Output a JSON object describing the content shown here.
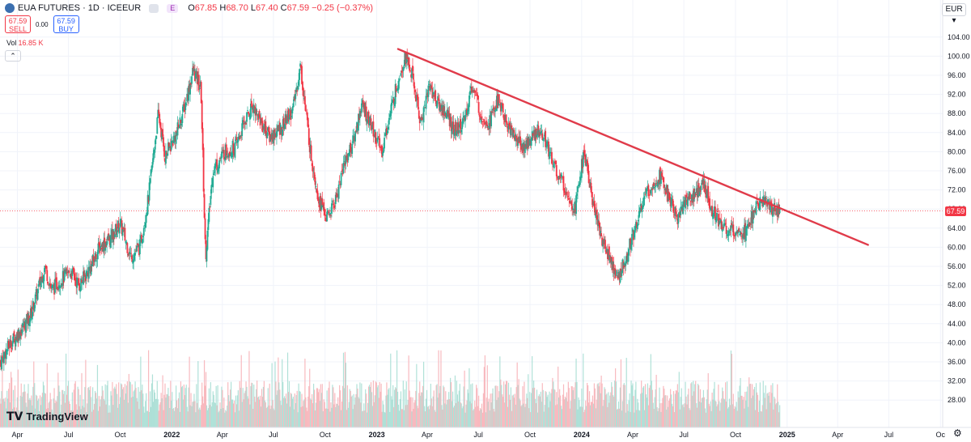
{
  "header": {
    "symbol": "EUA FUTURES · 1D · ICEEUR",
    "badge": "E",
    "ohlc": [
      {
        "k": "O",
        "v": "67.85"
      },
      {
        "k": "H",
        "v": "68.70"
      },
      {
        "k": "L",
        "v": "67.40"
      },
      {
        "k": "C",
        "v": "67.59"
      },
      {
        "k": "",
        "v": "−0.25 (−0.37%)"
      }
    ]
  },
  "trade": {
    "sell_price": "67.59",
    "sell_label": "SELL",
    "spread": "0.00",
    "buy_price": "67.59",
    "buy_label": "BUY"
  },
  "volume": {
    "label": "Vol",
    "value": "16.85 K"
  },
  "currency": "EUR ▾",
  "brand": "TradingView",
  "last_price_label": "67.59",
  "colors": {
    "up": "#22ab94",
    "down": "#f23645",
    "trendline": "#e03b4a",
    "grid": "#f0f3fa"
  },
  "chart_data": {
    "type": "candlestick",
    "symbol": "EUA FUTURES",
    "interval": "1D",
    "currency": "EUR",
    "y_ticks": [
      28,
      32,
      36,
      40,
      44,
      48,
      52,
      56,
      60,
      64,
      68,
      72,
      76,
      80,
      84,
      88,
      92,
      96,
      100,
      104
    ],
    "y_tick_labels": [
      "28.00",
      "32.00",
      "36.00",
      "40.00",
      "44.00",
      "48.00",
      "52.00",
      "56.00",
      "60.00",
      "64.00",
      "68.00",
      "72.00",
      "76.00",
      "80.00",
      "84.00",
      "88.00",
      "92.00",
      "96.00",
      "100.00",
      "104.00"
    ],
    "x_tick_labels": [
      "Apr",
      "Jul",
      "Oct",
      "2022",
      "Apr",
      "Jul",
      "Oct",
      "2023",
      "Apr",
      "Jul",
      "Oct",
      "2024",
      "Apr",
      "Jul",
      "Oct",
      "2025",
      "Apr",
      "Jul",
      "Oc"
    ],
    "ylim": [
      26,
      106
    ],
    "last_price": 67.59,
    "price_path": [
      [
        "2021-03-01",
        36
      ],
      [
        "2021-03-20",
        40
      ],
      [
        "2021-04-10",
        43
      ],
      [
        "2021-04-25",
        46
      ],
      [
        "2021-05-10",
        52
      ],
      [
        "2021-05-20",
        56
      ],
      [
        "2021-06-01",
        51
      ],
      [
        "2021-06-15",
        53
      ],
      [
        "2021-07-05",
        55
      ],
      [
        "2021-07-20",
        52
      ],
      [
        "2021-08-10",
        56
      ],
      [
        "2021-08-25",
        60
      ],
      [
        "2021-09-15",
        62
      ],
      [
        "2021-10-01",
        65
      ],
      [
        "2021-10-20",
        58
      ],
      [
        "2021-11-05",
        60
      ],
      [
        "2021-11-20",
        70
      ],
      [
        "2021-12-08",
        88
      ],
      [
        "2021-12-20",
        79
      ],
      [
        "2022-01-10",
        84
      ],
      [
        "2022-01-25",
        90
      ],
      [
        "2022-02-08",
        97
      ],
      [
        "2022-02-22",
        93
      ],
      [
        "2022-03-02",
        58
      ],
      [
        "2022-03-15",
        76
      ],
      [
        "2022-04-05",
        80
      ],
      [
        "2022-04-25",
        81
      ],
      [
        "2022-05-10",
        86
      ],
      [
        "2022-05-25",
        90
      ],
      [
        "2022-06-10",
        86
      ],
      [
        "2022-06-25",
        83
      ],
      [
        "2022-07-15",
        85
      ],
      [
        "2022-08-05",
        89
      ],
      [
        "2022-08-18",
        98
      ],
      [
        "2022-09-05",
        80
      ],
      [
        "2022-09-20",
        70
      ],
      [
        "2022-10-05",
        66
      ],
      [
        "2022-10-20",
        70
      ],
      [
        "2022-11-05",
        78
      ],
      [
        "2022-11-20",
        82
      ],
      [
        "2022-12-05",
        90
      ],
      [
        "2022-12-20",
        86
      ],
      [
        "2023-01-10",
        80
      ],
      [
        "2023-01-25",
        88
      ],
      [
        "2023-02-10",
        96
      ],
      [
        "2023-02-21",
        100
      ],
      [
        "2023-03-05",
        96
      ],
      [
        "2023-03-20",
        86
      ],
      [
        "2023-04-05",
        94
      ],
      [
        "2023-04-20",
        90
      ],
      [
        "2023-05-05",
        88
      ],
      [
        "2023-05-20",
        84
      ],
      [
        "2023-06-05",
        86
      ],
      [
        "2023-06-20",
        94
      ],
      [
        "2023-07-05",
        88
      ],
      [
        "2023-07-20",
        86
      ],
      [
        "2023-08-05",
        91
      ],
      [
        "2023-08-20",
        86
      ],
      [
        "2023-09-05",
        83
      ],
      [
        "2023-09-20",
        81
      ],
      [
        "2023-10-05",
        83
      ],
      [
        "2023-10-20",
        85
      ],
      [
        "2023-11-05",
        80
      ],
      [
        "2023-11-20",
        75
      ],
      [
        "2023-12-05",
        72
      ],
      [
        "2023-12-20",
        68
      ],
      [
        "2024-01-05",
        80
      ],
      [
        "2024-01-20",
        70
      ],
      [
        "2024-02-05",
        62
      ],
      [
        "2024-02-20",
        58
      ],
      [
        "2024-03-05",
        53
      ],
      [
        "2024-03-20",
        58
      ],
      [
        "2024-04-05",
        64
      ],
      [
        "2024-04-20",
        70
      ],
      [
        "2024-05-05",
        73
      ],
      [
        "2024-05-20",
        75
      ],
      [
        "2024-06-05",
        70
      ],
      [
        "2024-06-20",
        66
      ],
      [
        "2024-07-05",
        70
      ],
      [
        "2024-07-20",
        71
      ],
      [
        "2024-08-05",
        73
      ],
      [
        "2024-08-20",
        68
      ],
      [
        "2024-09-05",
        65
      ],
      [
        "2024-09-20",
        63
      ],
      [
        "2024-10-05",
        64
      ],
      [
        "2024-10-20",
        63
      ],
      [
        "2024-11-05",
        68
      ],
      [
        "2024-11-20",
        70
      ],
      [
        "2024-12-05",
        68
      ],
      [
        "2024-12-20",
        67.59
      ]
    ],
    "trendline": {
      "from": [
        "2023-02-08",
        101.5
      ],
      "to": [
        "2025-05-25",
        60.5
      ]
    }
  }
}
